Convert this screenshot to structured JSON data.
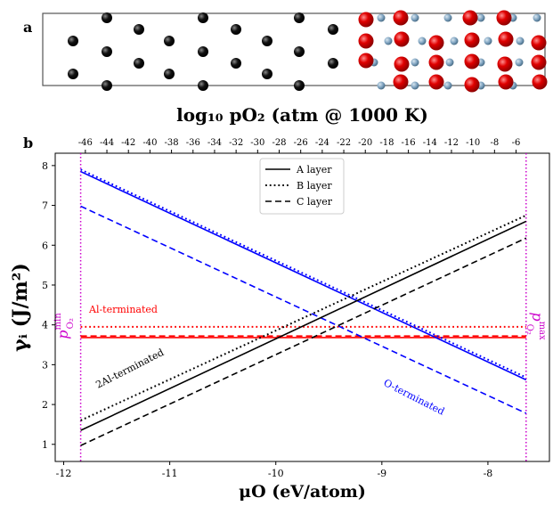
{
  "panel_labels": [
    "a",
    "b"
  ],
  "chart_data": {
    "type": "line",
    "x2label": "log₁₀ pO₂ (atm @ 1000 K)",
    "xlabel": "μO (eV/atom)",
    "ylabel": "γᵢ (J/m²)",
    "xlim": [
      -12.08,
      -7.42
    ],
    "xticks": [
      -12,
      -11,
      -10,
      -9,
      -8
    ],
    "x2lim": [
      -48.8,
      -2.9
    ],
    "x2ticks": [
      -46,
      -44,
      -42,
      -40,
      -38,
      -36,
      -34,
      -32,
      -30,
      -28,
      -26,
      -24,
      -22,
      -20,
      -18,
      -16,
      -14,
      -12,
      -10,
      -8,
      -6
    ],
    "ylim": [
      0.57,
      8.31
    ],
    "yticks": [
      1,
      2,
      3,
      4,
      5,
      6,
      7,
      8
    ],
    "vlines": [
      -11.84,
      -7.64
    ],
    "vline_color": "#cc00cc",
    "legend": [
      {
        "name": "A layer",
        "dash": "solid"
      },
      {
        "name": "B layer",
        "dash": "dotted"
      },
      {
        "name": "C layer",
        "dash": "dashed"
      }
    ],
    "series": [
      {
        "color": "#ff0000",
        "dash": "solid",
        "x": [
          -11.84,
          -7.64
        ],
        "values": [
          3.68,
          3.68
        ]
      },
      {
        "color": "#ff0000",
        "dash": "dotted",
        "x": [
          -11.84,
          -7.64
        ],
        "values": [
          3.95,
          3.95
        ]
      },
      {
        "color": "#ff0000",
        "dash": "dashed",
        "x": [
          -11.84,
          -7.64
        ],
        "values": [
          3.72,
          3.72
        ]
      },
      {
        "color": "#0000ff",
        "dash": "solid",
        "x": [
          -11.84,
          -7.64
        ],
        "values": [
          7.85,
          2.62
        ]
      },
      {
        "color": "#0000ff",
        "dash": "dotted",
        "x": [
          -11.84,
          -7.64
        ],
        "values": [
          7.9,
          2.68
        ]
      },
      {
        "color": "#0000ff",
        "dash": "dashed",
        "x": [
          -11.84,
          -7.64
        ],
        "values": [
          6.98,
          1.78
        ]
      },
      {
        "color": "#000000",
        "dash": "solid",
        "x": [
          -11.84,
          -7.64
        ],
        "values": [
          1.35,
          6.6
        ]
      },
      {
        "color": "#000000",
        "dash": "dotted",
        "x": [
          -11.84,
          -7.64
        ],
        "values": [
          1.6,
          6.75
        ]
      },
      {
        "color": "#000000",
        "dash": "dashed",
        "x": [
          -11.84,
          -7.64
        ],
        "values": [
          0.97,
          6.18
        ]
      }
    ],
    "annotations": [
      {
        "text": "Al-terminated",
        "color": "#ff0000"
      },
      {
        "text": "2Al-terminated",
        "color": "#000000"
      },
      {
        "text": "O-terminated",
        "color": "#0000ff"
      }
    ],
    "limit_labels": [
      {
        "text": "p",
        "sub": "O₂",
        "sup": "min"
      },
      {
        "text": "p",
        "sub": "O₂",
        "sup": "max"
      }
    ]
  }
}
